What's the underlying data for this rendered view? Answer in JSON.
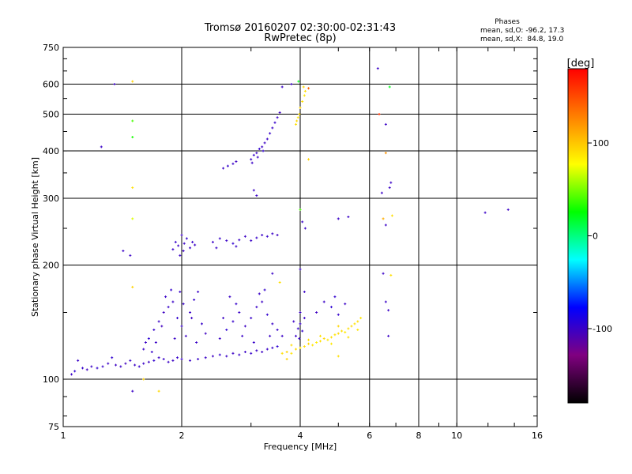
{
  "chart_data": {
    "type": "scatter",
    "title": "Tromsø 20160207 02:30:00-02:31:43",
    "subtitle": "RwPretec (8p)",
    "xlabel": "Frequency [MHz]",
    "ylabel": "Stationary phase Virtual Height [km]",
    "x_scale": "log",
    "y_scale": "log",
    "xlim": [
      1,
      16
    ],
    "ylim": [
      75,
      750
    ],
    "x_ticks": [
      1,
      2,
      4,
      6,
      8,
      10,
      16
    ],
    "y_ticks": [
      75,
      100,
      200,
      300,
      400,
      500,
      600,
      750
    ],
    "grid": true,
    "phases_box": {
      "title": "Phases",
      "line1": "mean, sd,O: -96.2, 17.3",
      "line2": "mean, sd,X:  84.8, 19.0"
    },
    "colorbar": {
      "label": "[deg]",
      "range": [
        -180,
        180
      ],
      "ticks": [
        100,
        0,
        -100
      ],
      "colormap": [
        "#000000",
        "#800080",
        "#0000ff",
        "#00ffff",
        "#00ff00",
        "#ffff00",
        "#ff8000",
        "#ff0000"
      ]
    },
    "points": [
      {
        "x": 1.05,
        "y": 103,
        "p": -100
      },
      {
        "x": 1.07,
        "y": 105,
        "p": -95
      },
      {
        "x": 1.09,
        "y": 112,
        "p": -100
      },
      {
        "x": 1.12,
        "y": 107,
        "p": -98
      },
      {
        "x": 1.15,
        "y": 106,
        "p": -102
      },
      {
        "x": 1.18,
        "y": 108,
        "p": -100
      },
      {
        "x": 1.22,
        "y": 107,
        "p": -97
      },
      {
        "x": 1.26,
        "y": 108,
        "p": -99
      },
      {
        "x": 1.3,
        "y": 110,
        "p": -100
      },
      {
        "x": 1.33,
        "y": 114,
        "p": -96
      },
      {
        "x": 1.36,
        "y": 109,
        "p": -101
      },
      {
        "x": 1.4,
        "y": 108,
        "p": -100
      },
      {
        "x": 1.44,
        "y": 110,
        "p": -103
      },
      {
        "x": 1.48,
        "y": 112,
        "p": -99
      },
      {
        "x": 1.52,
        "y": 109,
        "p": -100
      },
      {
        "x": 1.56,
        "y": 108,
        "p": -98
      },
      {
        "x": 1.6,
        "y": 110,
        "p": -100
      },
      {
        "x": 1.65,
        "y": 111,
        "p": -102
      },
      {
        "x": 1.7,
        "y": 112,
        "p": -97
      },
      {
        "x": 1.75,
        "y": 114,
        "p": -100
      },
      {
        "x": 1.8,
        "y": 113,
        "p": -99
      },
      {
        "x": 1.85,
        "y": 111,
        "p": -100
      },
      {
        "x": 1.9,
        "y": 112,
        "p": -101
      },
      {
        "x": 1.95,
        "y": 114,
        "p": -98
      },
      {
        "x": 2.0,
        "y": 113,
        "p": -100
      },
      {
        "x": 2.1,
        "y": 112,
        "p": -100
      },
      {
        "x": 2.2,
        "y": 113,
        "p": -99
      },
      {
        "x": 2.3,
        "y": 114,
        "p": -100
      },
      {
        "x": 2.4,
        "y": 115,
        "p": -102
      },
      {
        "x": 2.5,
        "y": 116,
        "p": -97
      },
      {
        "x": 2.6,
        "y": 115,
        "p": -100
      },
      {
        "x": 2.7,
        "y": 117,
        "p": -101
      },
      {
        "x": 2.8,
        "y": 116,
        "p": -99
      },
      {
        "x": 2.9,
        "y": 118,
        "p": -100
      },
      {
        "x": 3.0,
        "y": 117,
        "p": -98
      },
      {
        "x": 3.1,
        "y": 119,
        "p": -100
      },
      {
        "x": 3.2,
        "y": 118,
        "p": -101
      },
      {
        "x": 3.3,
        "y": 120,
        "p": -100
      },
      {
        "x": 3.4,
        "y": 121,
        "p": -99
      },
      {
        "x": 3.5,
        "y": 122,
        "p": -95
      },
      {
        "x": 3.6,
        "y": 117,
        "p": 90
      },
      {
        "x": 3.7,
        "y": 118,
        "p": 95
      },
      {
        "x": 3.8,
        "y": 117,
        "p": 88
      },
      {
        "x": 3.9,
        "y": 120,
        "p": 92
      },
      {
        "x": 4.0,
        "y": 121,
        "p": 85
      },
      {
        "x": 4.1,
        "y": 122,
        "p": 90
      },
      {
        "x": 4.2,
        "y": 124,
        "p": 93
      },
      {
        "x": 4.3,
        "y": 123,
        "p": 88
      },
      {
        "x": 4.4,
        "y": 125,
        "p": 85
      },
      {
        "x": 4.5,
        "y": 126,
        "p": 90
      },
      {
        "x": 4.6,
        "y": 128,
        "p": 92
      },
      {
        "x": 4.7,
        "y": 127,
        "p": 87
      },
      {
        "x": 4.8,
        "y": 129,
        "p": 90
      },
      {
        "x": 4.9,
        "y": 131,
        "p": 88
      },
      {
        "x": 5.0,
        "y": 132,
        "p": 93
      },
      {
        "x": 5.1,
        "y": 134,
        "p": 90
      },
      {
        "x": 5.2,
        "y": 133,
        "p": 85
      },
      {
        "x": 5.3,
        "y": 136,
        "p": 90
      },
      {
        "x": 5.4,
        "y": 138,
        "p": 92
      },
      {
        "x": 5.5,
        "y": 140,
        "p": 88
      },
      {
        "x": 5.6,
        "y": 142,
        "p": 90
      },
      {
        "x": 5.7,
        "y": 145,
        "p": 87
      },
      {
        "x": 4.2,
        "y": 127,
        "p": 91
      },
      {
        "x": 4.5,
        "y": 130,
        "p": 89
      },
      {
        "x": 5.0,
        "y": 138,
        "p": 94
      },
      {
        "x": 5.3,
        "y": 129,
        "p": 90
      },
      {
        "x": 4.8,
        "y": 124,
        "p": 86
      },
      {
        "x": 3.8,
        "y": 123,
        "p": 92
      },
      {
        "x": 3.7,
        "y": 113,
        "p": 95
      },
      {
        "x": 5.6,
        "y": 135,
        "p": 88
      },
      {
        "x": 4.6,
        "y": 160,
        "p": -100
      },
      {
        "x": 4.8,
        "y": 155,
        "p": -95
      },
      {
        "x": 5.0,
        "y": 148,
        "p": -98
      },
      {
        "x": 5.2,
        "y": 158,
        "p": -100
      },
      {
        "x": 4.4,
        "y": 150,
        "p": -102
      },
      {
        "x": 4.9,
        "y": 165,
        "p": -97
      },
      {
        "x": 1.6,
        "y": 120,
        "p": -100
      },
      {
        "x": 1.65,
        "y": 128,
        "p": -95
      },
      {
        "x": 1.7,
        "y": 135,
        "p": -98
      },
      {
        "x": 1.75,
        "y": 142,
        "p": -100
      },
      {
        "x": 1.8,
        "y": 150,
        "p": -102
      },
      {
        "x": 1.85,
        "y": 155,
        "p": -99
      },
      {
        "x": 1.9,
        "y": 160,
        "p": -100
      },
      {
        "x": 1.95,
        "y": 145,
        "p": -97
      },
      {
        "x": 2.0,
        "y": 138,
        "p": -100
      },
      {
        "x": 2.05,
        "y": 130,
        "p": -101
      },
      {
        "x": 2.1,
        "y": 150,
        "p": -100
      },
      {
        "x": 2.15,
        "y": 162,
        "p": -98
      },
      {
        "x": 2.2,
        "y": 170,
        "p": -100
      },
      {
        "x": 2.25,
        "y": 140,
        "p": -99
      },
      {
        "x": 2.3,
        "y": 132,
        "p": -102
      },
      {
        "x": 1.82,
        "y": 165,
        "p": -100
      },
      {
        "x": 1.88,
        "y": 172,
        "p": -97
      },
      {
        "x": 1.72,
        "y": 125,
        "p": -100
      },
      {
        "x": 1.68,
        "y": 118,
        "p": -98
      },
      {
        "x": 1.62,
        "y": 125,
        "p": -100
      },
      {
        "x": 2.12,
        "y": 145,
        "p": -101
      },
      {
        "x": 2.18,
        "y": 125,
        "p": -100
      },
      {
        "x": 1.98,
        "y": 170,
        "p": -99
      },
      {
        "x": 2.02,
        "y": 158,
        "p": -100
      },
      {
        "x": 1.78,
        "y": 138,
        "p": -103
      },
      {
        "x": 1.92,
        "y": 128,
        "p": -100
      },
      {
        "x": 2.5,
        "y": 128,
        "p": -100
      },
      {
        "x": 2.6,
        "y": 135,
        "p": -95
      },
      {
        "x": 2.7,
        "y": 142,
        "p": -98
      },
      {
        "x": 2.8,
        "y": 150,
        "p": -100
      },
      {
        "x": 2.9,
        "y": 138,
        "p": -102
      },
      {
        "x": 3.0,
        "y": 145,
        "p": -99
      },
      {
        "x": 3.1,
        "y": 155,
        "p": -100
      },
      {
        "x": 3.2,
        "y": 160,
        "p": -101
      },
      {
        "x": 3.3,
        "y": 148,
        "p": -97
      },
      {
        "x": 3.4,
        "y": 140,
        "p": -100
      },
      {
        "x": 3.5,
        "y": 135,
        "p": -99
      },
      {
        "x": 3.6,
        "y": 130,
        "p": -100
      },
      {
        "x": 2.65,
        "y": 165,
        "p": -100
      },
      {
        "x": 2.75,
        "y": 158,
        "p": -98
      },
      {
        "x": 3.15,
        "y": 168,
        "p": -100
      },
      {
        "x": 3.25,
        "y": 172,
        "p": -97
      },
      {
        "x": 2.55,
        "y": 145,
        "p": -101
      },
      {
        "x": 2.85,
        "y": 130,
        "p": -100
      },
      {
        "x": 3.05,
        "y": 125,
        "p": -99
      },
      {
        "x": 3.35,
        "y": 130,
        "p": -100
      },
      {
        "x": 3.9,
        "y": 130,
        "p": -100
      },
      {
        "x": 3.95,
        "y": 136,
        "p": -98
      },
      {
        "x": 4.0,
        "y": 140,
        "p": -100
      },
      {
        "x": 4.05,
        "y": 134,
        "p": -97
      },
      {
        "x": 4.1,
        "y": 145,
        "p": -100
      },
      {
        "x": 3.85,
        "y": 142,
        "p": -101
      },
      {
        "x": 4.0,
        "y": 150,
        "p": -100
      },
      {
        "x": 3.98,
        "y": 128,
        "p": -99
      },
      {
        "x": 1.9,
        "y": 220,
        "p": -100
      },
      {
        "x": 1.93,
        "y": 230,
        "p": -98
      },
      {
        "x": 1.96,
        "y": 225,
        "p": -100
      },
      {
        "x": 2.0,
        "y": 240,
        "p": -102
      },
      {
        "x": 2.03,
        "y": 228,
        "p": -100
      },
      {
        "x": 2.06,
        "y": 235,
        "p": -97
      },
      {
        "x": 2.1,
        "y": 222,
        "p": -100
      },
      {
        "x": 2.13,
        "y": 230,
        "p": -99
      },
      {
        "x": 2.16,
        "y": 226,
        "p": -100
      },
      {
        "x": 2.02,
        "y": 218,
        "p": -101
      },
      {
        "x": 1.98,
        "y": 212,
        "p": -100
      },
      {
        "x": 2.4,
        "y": 230,
        "p": -100
      },
      {
        "x": 2.5,
        "y": 235,
        "p": -98
      },
      {
        "x": 2.6,
        "y": 232,
        "p": -100
      },
      {
        "x": 2.7,
        "y": 228,
        "p": -97
      },
      {
        "x": 2.8,
        "y": 233,
        "p": -100
      },
      {
        "x": 2.9,
        "y": 238,
        "p": -101
      },
      {
        "x": 3.0,
        "y": 232,
        "p": -100
      },
      {
        "x": 3.1,
        "y": 236,
        "p": -99
      },
      {
        "x": 3.2,
        "y": 240,
        "p": -100
      },
      {
        "x": 3.3,
        "y": 238,
        "p": -98
      },
      {
        "x": 3.4,
        "y": 242,
        "p": -100
      },
      {
        "x": 3.5,
        "y": 240,
        "p": -102
      },
      {
        "x": 2.45,
        "y": 222,
        "p": -100
      },
      {
        "x": 2.75,
        "y": 224,
        "p": -99
      },
      {
        "x": 2.55,
        "y": 360,
        "p": -100
      },
      {
        "x": 2.62,
        "y": 365,
        "p": -98
      },
      {
        "x": 2.7,
        "y": 370,
        "p": -100
      },
      {
        "x": 2.75,
        "y": 375,
        "p": -102
      },
      {
        "x": 3.0,
        "y": 380,
        "p": -100
      },
      {
        "x": 3.05,
        "y": 390,
        "p": -98
      },
      {
        "x": 3.1,
        "y": 395,
        "p": -100
      },
      {
        "x": 3.15,
        "y": 405,
        "p": -97
      },
      {
        "x": 3.2,
        "y": 410,
        "p": -100
      },
      {
        "x": 3.25,
        "y": 420,
        "p": -101
      },
      {
        "x": 3.3,
        "y": 430,
        "p": -100
      },
      {
        "x": 3.35,
        "y": 445,
        "p": -99
      },
      {
        "x": 3.4,
        "y": 460,
        "p": -100
      },
      {
        "x": 3.45,
        "y": 475,
        "p": -98
      },
      {
        "x": 3.5,
        "y": 490,
        "p": -100
      },
      {
        "x": 3.55,
        "y": 505,
        "p": -102
      },
      {
        "x": 3.12,
        "y": 385,
        "p": -100
      },
      {
        "x": 3.22,
        "y": 400,
        "p": -97
      },
      {
        "x": 3.02,
        "y": 372,
        "p": -100
      },
      {
        "x": 3.9,
        "y": 470,
        "p": 90
      },
      {
        "x": 3.92,
        "y": 480,
        "p": 92
      },
      {
        "x": 3.95,
        "y": 490,
        "p": 88
      },
      {
        "x": 3.98,
        "y": 500,
        "p": 90
      },
      {
        "x": 4.0,
        "y": 520,
        "p": 94
      },
      {
        "x": 4.05,
        "y": 540,
        "p": 90
      },
      {
        "x": 4.1,
        "y": 560,
        "p": 87
      },
      {
        "x": 4.12,
        "y": 575,
        "p": 90
      },
      {
        "x": 4.08,
        "y": 590,
        "p": 92
      },
      {
        "x": 3.8,
        "y": 600,
        "p": -100
      },
      {
        "x": 3.96,
        "y": 610,
        "p": 20
      },
      {
        "x": 1.35,
        "y": 600,
        "p": -100
      },
      {
        "x": 1.5,
        "y": 610,
        "p": 95
      },
      {
        "x": 1.5,
        "y": 480,
        "p": 40
      },
      {
        "x": 1.5,
        "y": 435,
        "p": 30
      },
      {
        "x": 1.5,
        "y": 320,
        "p": 90
      },
      {
        "x": 1.5,
        "y": 265,
        "p": 70
      },
      {
        "x": 1.42,
        "y": 218,
        "p": -100
      },
      {
        "x": 1.48,
        "y": 212,
        "p": -100
      },
      {
        "x": 1.5,
        "y": 175,
        "p": 95
      },
      {
        "x": 1.5,
        "y": 93,
        "p": -100
      },
      {
        "x": 1.6,
        "y": 100,
        "p": 95
      },
      {
        "x": 1.75,
        "y": 93,
        "p": 93
      },
      {
        "x": 1.25,
        "y": 410,
        "p": -100
      },
      {
        "x": 6.3,
        "y": 660,
        "p": -100
      },
      {
        "x": 6.35,
        "y": 500,
        "p": 160
      },
      {
        "x": 6.6,
        "y": 470,
        "p": -100
      },
      {
        "x": 6.6,
        "y": 395,
        "p": 120
      },
      {
        "x": 6.8,
        "y": 330,
        "p": -100
      },
      {
        "x": 6.75,
        "y": 320,
        "p": -100
      },
      {
        "x": 6.45,
        "y": 310,
        "p": -100
      },
      {
        "x": 6.5,
        "y": 265,
        "p": 110
      },
      {
        "x": 6.85,
        "y": 270,
        "p": 90
      },
      {
        "x": 6.6,
        "y": 255,
        "p": -100
      },
      {
        "x": 6.5,
        "y": 190,
        "p": -100
      },
      {
        "x": 6.8,
        "y": 188,
        "p": 90
      },
      {
        "x": 6.6,
        "y": 160,
        "p": -100
      },
      {
        "x": 6.7,
        "y": 152,
        "p": -100
      },
      {
        "x": 6.7,
        "y": 130,
        "p": -100
      },
      {
        "x": 6.75,
        "y": 590,
        "p": 20
      },
      {
        "x": 4.0,
        "y": 280,
        "p": 40
      },
      {
        "x": 4.05,
        "y": 260,
        "p": -100
      },
      {
        "x": 4.12,
        "y": 250,
        "p": -100
      },
      {
        "x": 4.2,
        "y": 380,
        "p": 95
      },
      {
        "x": 4.2,
        "y": 585,
        "p": 140
      },
      {
        "x": 4.0,
        "y": 195,
        "p": -100
      },
      {
        "x": 4.1,
        "y": 170,
        "p": -100
      },
      {
        "x": 5.0,
        "y": 265,
        "p": -100
      },
      {
        "x": 5.3,
        "y": 268,
        "p": -100
      },
      {
        "x": 5.0,
        "y": 115,
        "p": 90
      },
      {
        "x": 3.55,
        "y": 180,
        "p": 90
      },
      {
        "x": 3.4,
        "y": 190,
        "p": -100
      },
      {
        "x": 3.6,
        "y": 590,
        "p": -100
      },
      {
        "x": 3.05,
        "y": 315,
        "p": -100
      },
      {
        "x": 3.1,
        "y": 305,
        "p": -100
      },
      {
        "x": 11.8,
        "y": 275,
        "p": -100
      },
      {
        "x": 13.5,
        "y": 280,
        "p": -100
      }
    ]
  }
}
